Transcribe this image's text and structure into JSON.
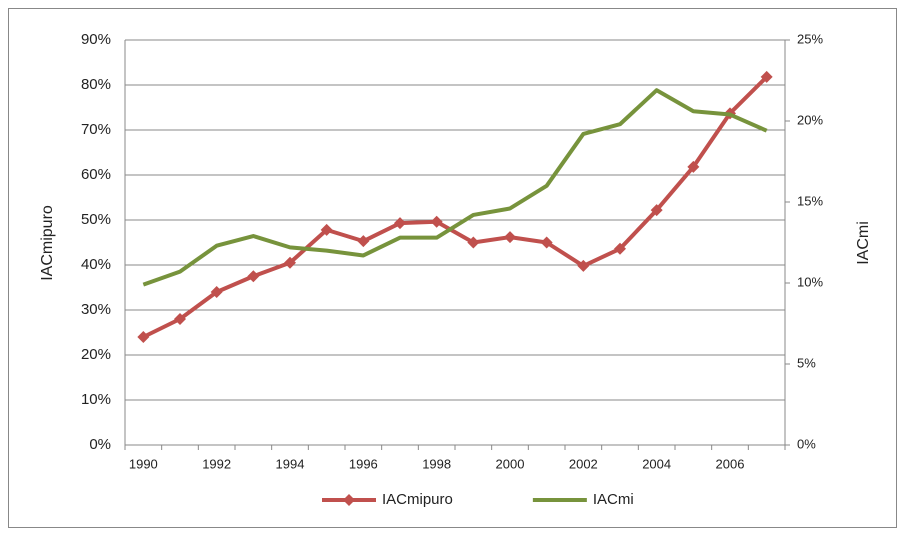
{
  "chart_data": {
    "type": "line",
    "categories": [
      1990,
      null,
      1992,
      null,
      1994,
      null,
      1996,
      null,
      1998,
      null,
      2000,
      null,
      2002,
      null,
      2004,
      null,
      2006,
      null
    ],
    "series": [
      {
        "name": "IACmipuro",
        "color": "#c0504d",
        "values": [
          24,
          28,
          34,
          37.5,
          40.5,
          47.8,
          45.3,
          49.3,
          49.6,
          45,
          46.2,
          45,
          39.8,
          43.6,
          52.2,
          61.8,
          73.7,
          81.8
        ]
      },
      {
        "name": "IACmi",
        "color": "#77933c",
        "axis": "y2",
        "values": [
          9.9,
          10.7,
          12.3,
          12.9,
          12.2,
          12.0,
          11.7,
          12.8,
          12.8,
          14.2,
          14.6,
          16.0,
          19.2,
          19.8,
          21.9,
          20.6,
          20.4,
          19.4
        ]
      }
    ],
    "y_label": "IACmipuro",
    "y2_label": "IACmi",
    "ylim": [
      0,
      90
    ],
    "yticks": [
      {
        "value": 0,
        "label": "0%"
      },
      {
        "value": 10,
        "label": "10%"
      },
      {
        "value": 20,
        "label": "20%"
      },
      {
        "value": 30,
        "label": "30%"
      },
      {
        "value": 40,
        "label": "40%"
      },
      {
        "value": 50,
        "label": "50%"
      },
      {
        "value": 60,
        "label": "60%"
      },
      {
        "value": 70,
        "label": "70%"
      },
      {
        "value": 80,
        "label": "80%"
      },
      {
        "value": 90,
        "label": "90%"
      }
    ],
    "y2lim": [
      0,
      25
    ],
    "y2ticks": [
      {
        "value": 0,
        "label": "0%"
      },
      {
        "value": 5,
        "label": "5%"
      },
      {
        "value": 10,
        "label": "10%"
      },
      {
        "value": 15,
        "label": "15%"
      },
      {
        "value": 20,
        "label": "20%"
      },
      {
        "value": 25,
        "label": "25%"
      }
    ],
    "grid": true,
    "legend": "bottom"
  }
}
